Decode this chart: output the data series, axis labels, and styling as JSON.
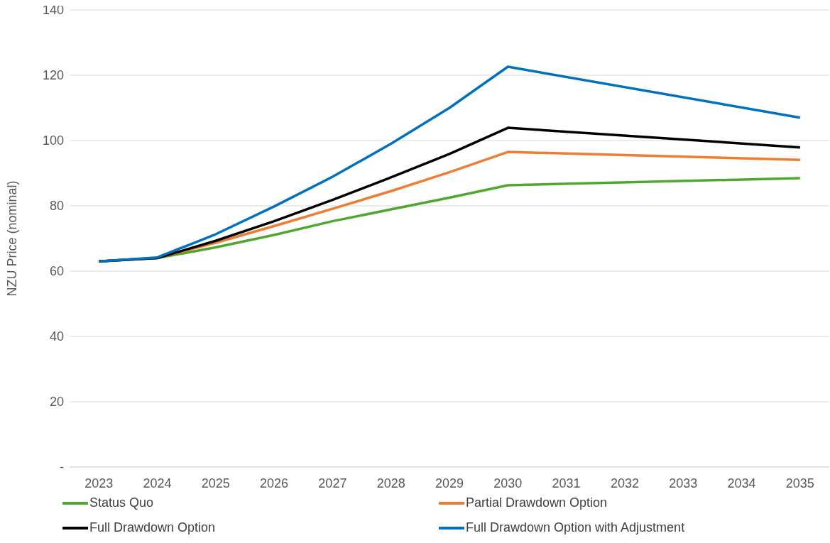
{
  "chart_data": {
    "type": "line",
    "ylabel": "NZU Price (nominal)",
    "xlim": [
      2022.5,
      2035.5
    ],
    "xticks": [
      2023,
      2024,
      2025,
      2026,
      2027,
      2028,
      2029,
      2030,
      2031,
      2032,
      2033,
      2034,
      2035
    ],
    "ylim": [
      0,
      140
    ],
    "yticks": [
      {
        "value": 0,
        "label": "-"
      },
      20,
      40,
      60,
      80,
      100,
      120,
      140
    ],
    "grid": "y",
    "legend": "bottom",
    "marker": "none",
    "line_style": "solid",
    "series": [
      {
        "name": "Status Quo",
        "color": "#4ea72e",
        "x": [
          2023,
          2024,
          2025,
          2026,
          2027,
          2028,
          2029,
          2030,
          2035
        ],
        "values": [
          63,
          64,
          67.3,
          71.1,
          75.3,
          78.9,
          82.5,
          86.3,
          88.5
        ]
      },
      {
        "name": "Partial Drawdown Option",
        "color": "#ed7d31",
        "x": [
          2023,
          2024,
          2025,
          2026,
          2027,
          2028,
          2029,
          2030,
          2035
        ],
        "values": [
          63,
          64,
          68.7,
          73.8,
          79.1,
          84.5,
          90.3,
          96.5,
          94.1
        ]
      },
      {
        "name": "Full Drawdown Option",
        "color": "#000000",
        "x": [
          2023,
          2024,
          2025,
          2026,
          2027,
          2028,
          2029,
          2030,
          2035
        ],
        "values": [
          63,
          64,
          69.3,
          75.3,
          81.8,
          88.7,
          95.9,
          103.9,
          97.9
        ]
      },
      {
        "name": "Full Drawdown Option with Adjustment",
        "color": "#0070c0",
        "x": [
          2023,
          2024,
          2025,
          2026,
          2027,
          2028,
          2029,
          2030,
          2035
        ],
        "values": [
          63,
          64.2,
          71.3,
          79.8,
          88.9,
          99,
          110,
          122.6,
          107
        ]
      }
    ]
  }
}
